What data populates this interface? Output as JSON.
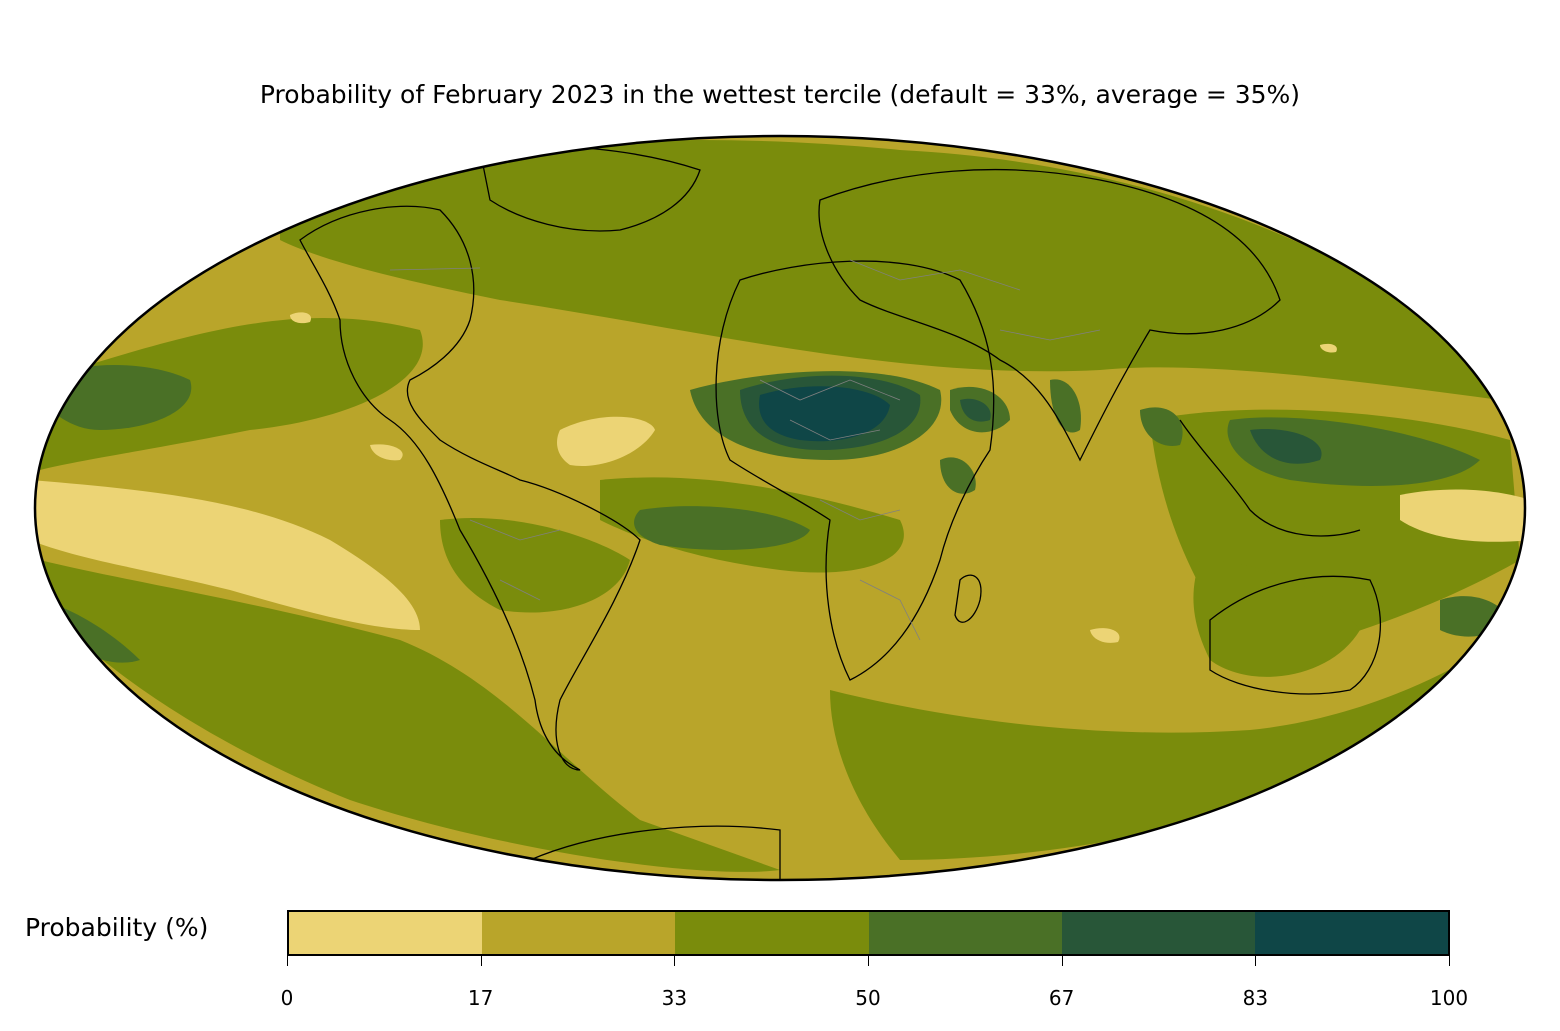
{
  "title": "Probability of February 2023 in the wettest tercile (default = 33%, average = 35%)",
  "colorbar": {
    "label": "Probability (%)",
    "ticks": [
      "0",
      "17",
      "33",
      "50",
      "67",
      "83",
      "100"
    ],
    "colors": [
      "#ecd475",
      "#b9a52a",
      "#7a8c0c",
      "#4a7026",
      "#285638",
      "#0f4647"
    ]
  },
  "map": {
    "projection": "Mollweide",
    "ocean_base_color": "#b9a52a",
    "coastline_color": "#000000",
    "border_color": "#808080"
  }
}
